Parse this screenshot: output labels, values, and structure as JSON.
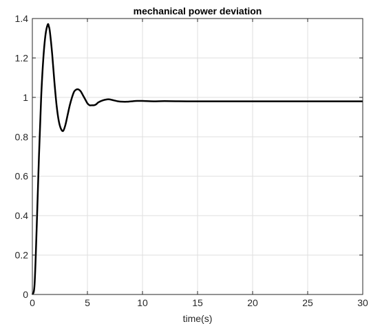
{
  "chart_data": {
    "type": "line",
    "title": "mechanical power deviation",
    "xlabel": "time(s)",
    "ylabel": "",
    "xlim": [
      0,
      30
    ],
    "ylim": [
      0,
      1.4
    ],
    "xticks": [
      0,
      5,
      10,
      15,
      20,
      25,
      30
    ],
    "yticks": [
      0,
      0.2,
      0.4,
      0.6,
      0.8,
      1,
      1.2,
      1.4
    ],
    "xtick_labels": [
      "0",
      "5",
      "10",
      "15",
      "20",
      "25",
      "30"
    ],
    "ytick_labels": [
      "0",
      "0.2",
      "0.4",
      "0.6",
      "0.8",
      "1",
      "1.2",
      "1.4"
    ],
    "grid": true,
    "legend": "none",
    "colors": {
      "line": "#000000",
      "grid": "#dfdfdf",
      "axes": "#262626"
    },
    "series": [
      {
        "x": [
          0,
          0.2,
          0.4,
          0.6,
          0.8,
          1.0,
          1.2,
          1.4,
          1.5,
          1.6,
          1.8,
          2.0,
          2.2,
          2.4,
          2.6,
          2.8,
          3.0,
          3.2,
          3.4,
          3.6,
          3.8,
          4.0,
          4.2,
          4.4,
          4.6,
          4.8,
          5.0,
          5.2,
          5.4,
          5.6,
          5.8,
          6.0,
          6.4,
          6.8,
          7.0,
          7.4,
          7.8,
          8.2,
          8.6,
          9.0,
          9.5,
          10,
          11,
          12,
          14,
          16,
          20,
          25,
          30
        ],
        "y": [
          0,
          0.05,
          0.35,
          0.7,
          1.0,
          1.2,
          1.32,
          1.37,
          1.36,
          1.33,
          1.22,
          1.08,
          0.96,
          0.88,
          0.84,
          0.83,
          0.86,
          0.91,
          0.96,
          1.0,
          1.03,
          1.04,
          1.04,
          1.03,
          1.01,
          0.99,
          0.97,
          0.96,
          0.96,
          0.96,
          0.965,
          0.975,
          0.985,
          0.99,
          0.99,
          0.985,
          0.98,
          0.978,
          0.978,
          0.98,
          0.982,
          0.982,
          0.98,
          0.981,
          0.98,
          0.98,
          0.98,
          0.98,
          0.98
        ]
      }
    ]
  }
}
